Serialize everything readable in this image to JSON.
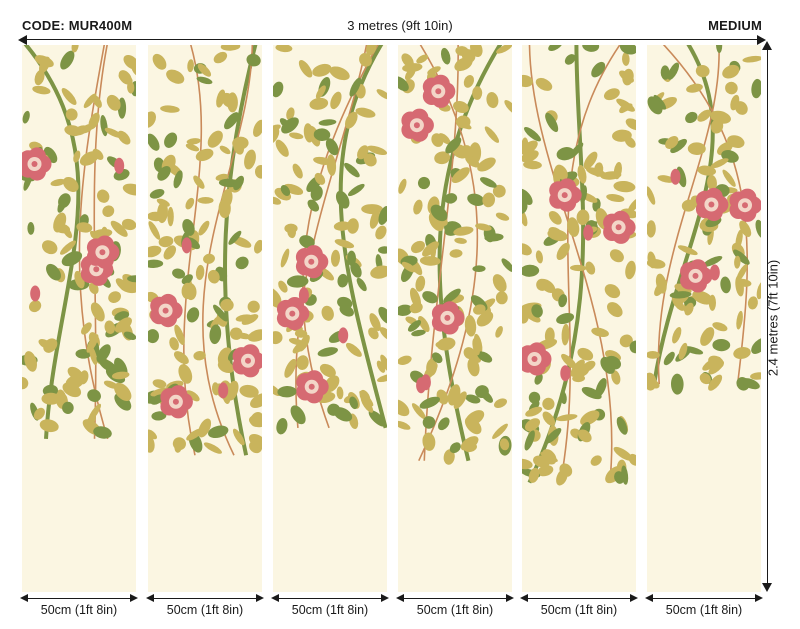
{
  "header": {
    "code": "CODE: MUR400M",
    "width": "3 metres (9ft 10in)",
    "size": "MEDIUM"
  },
  "height_label": "2.4 metres (7ft 10in)",
  "panel_labels": [
    "50cm (1ft 8in)",
    "50cm (1ft 8in)",
    "50cm (1ft 8in)",
    "50cm (1ft 8in)",
    "50cm (1ft 8in)",
    "50cm (1ft 8in)"
  ],
  "colors": {
    "background": "#fbf6e2",
    "leaf_olive": "#c9b45c",
    "leaf_green": "#7d9445",
    "flower": "#d66a72",
    "flower_center": "#f3d6c8",
    "stem": "#c98a5a"
  },
  "pattern": {
    "panels": [
      {
        "fill_level": 0.72
      },
      {
        "fill_level": 0.75
      },
      {
        "fill_level": 0.7
      },
      {
        "fill_level": 0.76
      },
      {
        "fill_level": 0.8
      },
      {
        "fill_level": 0.62
      }
    ]
  }
}
